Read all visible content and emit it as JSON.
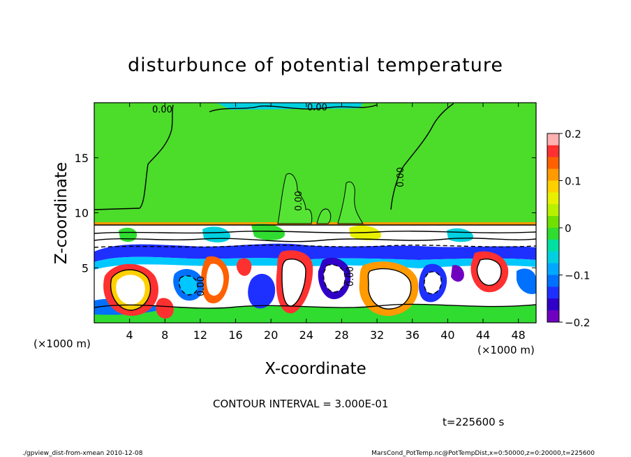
{
  "chart_data": {
    "type": "heatmap",
    "title": "disturbunce of potential temperature",
    "xlabel": "X-coordinate",
    "ylabel": "Z-coordinate",
    "x_unit": "(×1000 m)",
    "y_unit": "(×1000 m)",
    "xlim": [
      0,
      50
    ],
    "ylim": [
      0,
      20
    ],
    "x_ticks": [
      4,
      8,
      12,
      16,
      20,
      24,
      28,
      32,
      36,
      40,
      44,
      48
    ],
    "y_ticks": [
      5,
      10,
      15
    ],
    "colorbar": {
      "range": [
        -0.2,
        0.2
      ],
      "ticks": [
        0.2,
        0.1,
        0,
        -0.1,
        -0.2
      ],
      "tick_labels": [
        "0.2",
        "0.1",
        "0",
        "−0.1",
        "−0.2"
      ],
      "colors": [
        "#ffb0b0",
        "#ff3030",
        "#ff6000",
        "#ff9a00",
        "#ffd000",
        "#e8f000",
        "#b8f000",
        "#70e000",
        "#30dc30",
        "#00e0a0",
        "#00d0e0",
        "#00a8ff",
        "#0070ff",
        "#1e30ff",
        "#3000c8",
        "#7000c0"
      ]
    },
    "contour_interval_text": "CONTOUR INTERVAL = 3.000E-01",
    "contour_labels": [
      "0.00",
      "0.00",
      "0.00",
      "0.00",
      "0.00",
      "0.00"
    ],
    "time_text": "t=225600 s",
    "grid": false,
    "legend": "colorbar-right"
  },
  "footer": {
    "left": "./gpview_dist-from-xmean  2010-12-08",
    "right": "MarsCond_PotTemp.nc@PotTempDist,x=0:50000,z=0:20000,t=225600"
  }
}
